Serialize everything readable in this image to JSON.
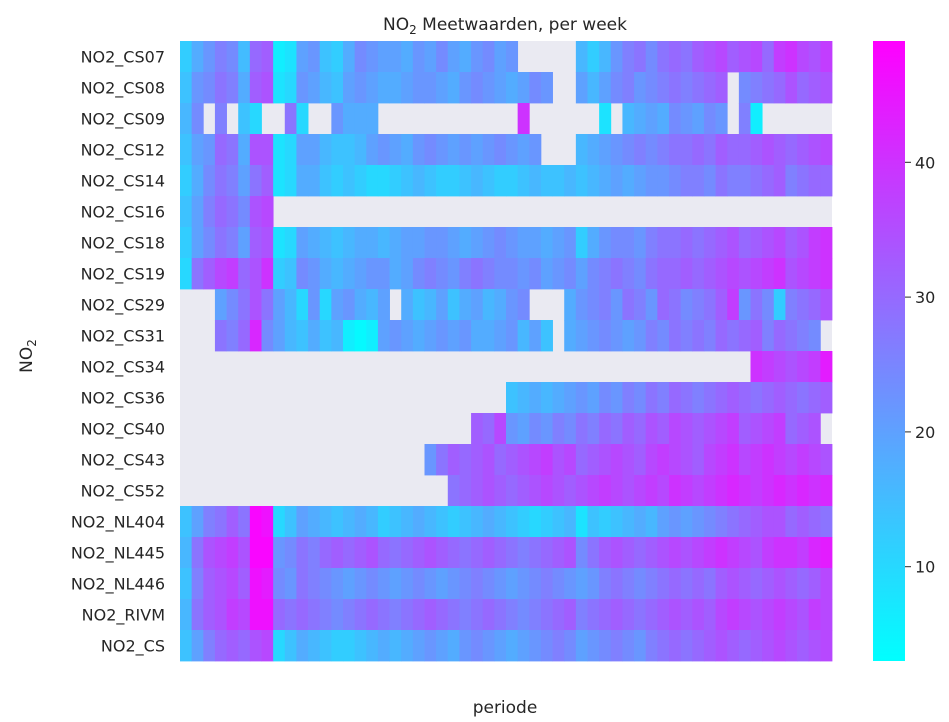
{
  "chart_data": {
    "type": "heatmap",
    "title": "NO2 Meetwaarden, per week",
    "title_main": "NO",
    "title_sub": "2",
    "title_rest": " Meetwaarden, per week",
    "xlabel": "periode",
    "ylabel": "NO2",
    "ylabel_main": "NO",
    "ylabel_sub": "2",
    "rows": [
      "NO2_CS07",
      "NO2_CS08",
      "NO2_CS09",
      "NO2_CS12",
      "NO2_CS14",
      "NO2_CS16",
      "NO2_CS18",
      "NO2_CS19",
      "NO2_CS29",
      "NO2_CS31",
      "NO2_CS34",
      "NO2_CS36",
      "NO2_CS40",
      "NO2_CS43",
      "NO2_CS52",
      "NO2_NL404",
      "NO2_NL445",
      "NO2_NL446",
      "NO2_RIVM",
      "NO2_CS"
    ],
    "n_periods": 56,
    "colorbar": {
      "min": 3,
      "max": 49,
      "ticks": [
        10,
        20,
        30,
        40
      ],
      "low_color": "#00ffff",
      "high_color": "#ff00ff"
    },
    "missing_color": "#eaeaf2",
    "values": [
      [
        12,
        18,
        22,
        26,
        24,
        15,
        30,
        32,
        6,
        8,
        20,
        22,
        14,
        12,
        18,
        24,
        22,
        20,
        20,
        18,
        22,
        20,
        24,
        20,
        18,
        22,
        24,
        20,
        22,
        null,
        null,
        null,
        null,
        null,
        16,
        12,
        16,
        22,
        26,
        28,
        24,
        28,
        30,
        28,
        32,
        34,
        36,
        32,
        34,
        36,
        30,
        38,
        40,
        36,
        34,
        38
      ],
      [
        14,
        22,
        24,
        28,
        26,
        18,
        32,
        34,
        8,
        10,
        22,
        20,
        16,
        14,
        20,
        22,
        20,
        18,
        18,
        20,
        22,
        22,
        20,
        18,
        22,
        24,
        22,
        20,
        18,
        20,
        24,
        22,
        null,
        null,
        20,
        16,
        20,
        24,
        26,
        22,
        24,
        26,
        28,
        26,
        28,
        30,
        32,
        null,
        24,
        26,
        28,
        30,
        34,
        30,
        32,
        34
      ],
      [
        16,
        24,
        null,
        26,
        null,
        14,
        10,
        null,
        null,
        28,
        10,
        null,
        null,
        22,
        18,
        18,
        18,
        null,
        null,
        null,
        null,
        null,
        null,
        null,
        null,
        null,
        null,
        null,
        null,
        40,
        null,
        null,
        null,
        null,
        null,
        null,
        8,
        null,
        16,
        18,
        20,
        18,
        24,
        22,
        20,
        24,
        22,
        null,
        26,
        6,
        null,
        null,
        null,
        null,
        null,
        null
      ],
      [
        14,
        20,
        22,
        30,
        28,
        18,
        34,
        34,
        8,
        10,
        20,
        20,
        16,
        14,
        14,
        16,
        20,
        22,
        20,
        18,
        22,
        24,
        22,
        20,
        22,
        20,
        22,
        24,
        22,
        20,
        22,
        null,
        null,
        null,
        16,
        18,
        20,
        22,
        24,
        26,
        24,
        26,
        28,
        28,
        30,
        28,
        32,
        30,
        30,
        32,
        34,
        32,
        30,
        32,
        34,
        36
      ],
      [
        12,
        18,
        24,
        28,
        26,
        20,
        28,
        32,
        8,
        10,
        18,
        18,
        14,
        12,
        14,
        12,
        10,
        10,
        12,
        14,
        16,
        14,
        12,
        12,
        14,
        16,
        14,
        12,
        12,
        14,
        16,
        14,
        14,
        16,
        14,
        16,
        18,
        20,
        18,
        20,
        22,
        22,
        24,
        26,
        26,
        24,
        28,
        26,
        26,
        28,
        30,
        32,
        26,
        28,
        30,
        30
      ],
      [
        14,
        20,
        26,
        30,
        28,
        24,
        34,
        36,
        null,
        null,
        null,
        null,
        null,
        null,
        null,
        null,
        null,
        null,
        null,
        null,
        null,
        null,
        null,
        null,
        null,
        null,
        null,
        null,
        null,
        null,
        null,
        null,
        null,
        null,
        null,
        null,
        null,
        null,
        null,
        null,
        null,
        null,
        null,
        null,
        null,
        null,
        null,
        null,
        null,
        null,
        null,
        null,
        null,
        null,
        null,
        null
      ],
      [
        12,
        20,
        24,
        28,
        26,
        20,
        32,
        34,
        8,
        10,
        20,
        18,
        16,
        14,
        16,
        18,
        18,
        16,
        18,
        20,
        20,
        22,
        22,
        20,
        18,
        20,
        22,
        24,
        22,
        20,
        20,
        18,
        20,
        22,
        12,
        18,
        22,
        24,
        24,
        22,
        26,
        28,
        28,
        30,
        28,
        30,
        32,
        34,
        30,
        32,
        34,
        36,
        32,
        34,
        38,
        40
      ],
      [
        10,
        28,
        32,
        36,
        38,
        30,
        34,
        40,
        12,
        14,
        24,
        22,
        18,
        16,
        18,
        20,
        22,
        22,
        18,
        20,
        24,
        26,
        24,
        22,
        26,
        28,
        26,
        24,
        24,
        22,
        24,
        20,
        22,
        24,
        20,
        24,
        26,
        28,
        26,
        24,
        28,
        30,
        30,
        32,
        30,
        32,
        34,
        36,
        34,
        36,
        38,
        40,
        34,
        36,
        38,
        40
      ],
      [
        null,
        null,
        null,
        20,
        24,
        28,
        34,
        28,
        20,
        16,
        10,
        22,
        10,
        20,
        22,
        18,
        16,
        20,
        null,
        18,
        14,
        16,
        20,
        14,
        18,
        20,
        16,
        18,
        22,
        24,
        null,
        null,
        null,
        18,
        22,
        24,
        26,
        22,
        28,
        26,
        22,
        30,
        28,
        24,
        26,
        28,
        32,
        38,
        22,
        28,
        24,
        12,
        26,
        28,
        30,
        34
      ],
      [
        null,
        null,
        null,
        28,
        26,
        30,
        42,
        24,
        20,
        16,
        14,
        18,
        14,
        16,
        6,
        4,
        6,
        20,
        22,
        20,
        18,
        20,
        22,
        20,
        22,
        18,
        18,
        20,
        22,
        16,
        20,
        14,
        null,
        18,
        20,
        22,
        24,
        22,
        20,
        22,
        26,
        24,
        28,
        26,
        28,
        26,
        30,
        28,
        30,
        32,
        26,
        30,
        28,
        26,
        24,
        null
      ],
      [
        null,
        null,
        null,
        null,
        null,
        null,
        null,
        null,
        null,
        null,
        null,
        null,
        null,
        null,
        null,
        null,
        null,
        null,
        null,
        null,
        null,
        null,
        null,
        null,
        null,
        null,
        null,
        null,
        null,
        null,
        null,
        null,
        null,
        null,
        null,
        null,
        null,
        null,
        null,
        null,
        null,
        null,
        null,
        null,
        null,
        null,
        null,
        null,
        null,
        40,
        38,
        36,
        34,
        36,
        38,
        44
      ],
      [
        null,
        null,
        null,
        null,
        null,
        null,
        null,
        null,
        null,
        null,
        null,
        null,
        null,
        null,
        null,
        null,
        null,
        null,
        null,
        null,
        null,
        null,
        null,
        null,
        null,
        null,
        null,
        null,
        14,
        16,
        18,
        16,
        18,
        20,
        22,
        20,
        24,
        22,
        26,
        24,
        28,
        26,
        30,
        28,
        26,
        28,
        30,
        32,
        30,
        28,
        30,
        32,
        30,
        28,
        30,
        32
      ],
      [
        null,
        null,
        null,
        null,
        null,
        null,
        null,
        null,
        null,
        null,
        null,
        null,
        null,
        null,
        null,
        null,
        null,
        null,
        null,
        null,
        null,
        null,
        null,
        null,
        null,
        32,
        30,
        36,
        22,
        20,
        24,
        22,
        26,
        24,
        28,
        26,
        30,
        28,
        32,
        30,
        34,
        32,
        36,
        34,
        32,
        34,
        36,
        38,
        32,
        34,
        36,
        38,
        30,
        32,
        34,
        null
      ],
      [
        null,
        null,
        null,
        null,
        null,
        null,
        null,
        null,
        null,
        null,
        null,
        null,
        null,
        null,
        null,
        null,
        null,
        null,
        null,
        null,
        null,
        22,
        28,
        32,
        30,
        32,
        34,
        30,
        32,
        34,
        36,
        38,
        34,
        36,
        30,
        32,
        34,
        36,
        34,
        32,
        36,
        38,
        36,
        34,
        32,
        36,
        38,
        40,
        36,
        38,
        40,
        38,
        36,
        38,
        36,
        34
      ],
      [
        null,
        null,
        null,
        null,
        null,
        null,
        null,
        null,
        null,
        null,
        null,
        null,
        null,
        null,
        null,
        null,
        null,
        null,
        null,
        null,
        null,
        null,
        null,
        28,
        30,
        32,
        34,
        32,
        30,
        32,
        34,
        36,
        34,
        32,
        34,
        36,
        38,
        36,
        34,
        36,
        38,
        36,
        40,
        38,
        36,
        38,
        40,
        42,
        40,
        38,
        40,
        42,
        40,
        42,
        40,
        42
      ],
      [
        14,
        20,
        26,
        28,
        32,
        28,
        48,
        46,
        10,
        14,
        20,
        18,
        16,
        14,
        16,
        18,
        16,
        12,
        14,
        16,
        18,
        16,
        14,
        12,
        14,
        16,
        18,
        16,
        14,
        12,
        10,
        12,
        14,
        16,
        8,
        14,
        12,
        14,
        16,
        18,
        16,
        20,
        22,
        20,
        22,
        24,
        26,
        28,
        30,
        32,
        34,
        34,
        30,
        32,
        30,
        28
      ],
      [
        16,
        28,
        34,
        36,
        38,
        34,
        48,
        48,
        22,
        24,
        28,
        26,
        30,
        32,
        30,
        32,
        34,
        30,
        28,
        30,
        32,
        34,
        32,
        30,
        28,
        30,
        32,
        30,
        28,
        26,
        28,
        30,
        32,
        34,
        24,
        28,
        32,
        34,
        32,
        30,
        32,
        34,
        36,
        34,
        36,
        38,
        40,
        38,
        36,
        34,
        38,
        40,
        40,
        38,
        42,
        44
      ],
      [
        14,
        26,
        32,
        34,
        36,
        32,
        46,
        44,
        24,
        22,
        28,
        26,
        24,
        22,
        20,
        22,
        24,
        22,
        20,
        22,
        24,
        22,
        20,
        22,
        24,
        26,
        24,
        22,
        20,
        22,
        24,
        26,
        24,
        22,
        20,
        22,
        26,
        28,
        26,
        24,
        26,
        28,
        30,
        28,
        30,
        28,
        32,
        34,
        32,
        30,
        32,
        34,
        32,
        30,
        32,
        36
      ],
      [
        16,
        28,
        32,
        34,
        38,
        36,
        46,
        46,
        30,
        28,
        30,
        28,
        26,
        24,
        26,
        28,
        30,
        28,
        26,
        28,
        30,
        32,
        30,
        28,
        26,
        28,
        30,
        28,
        26,
        24,
        26,
        28,
        30,
        32,
        26,
        28,
        30,
        32,
        30,
        28,
        30,
        32,
        34,
        32,
        34,
        32,
        36,
        38,
        36,
        34,
        36,
        38,
        36,
        34,
        38,
        36
      ],
      [
        14,
        20,
        26,
        30,
        32,
        30,
        34,
        36,
        10,
        14,
        18,
        16,
        14,
        12,
        12,
        14,
        16,
        18,
        16,
        18,
        20,
        22,
        20,
        18,
        22,
        24,
        22,
        20,
        18,
        20,
        22,
        24,
        26,
        24,
        20,
        22,
        24,
        26,
        24,
        22,
        26,
        28,
        30,
        28,
        30,
        32,
        34,
        32,
        30,
        32,
        34,
        36,
        34,
        32,
        34,
        36
      ]
    ]
  }
}
